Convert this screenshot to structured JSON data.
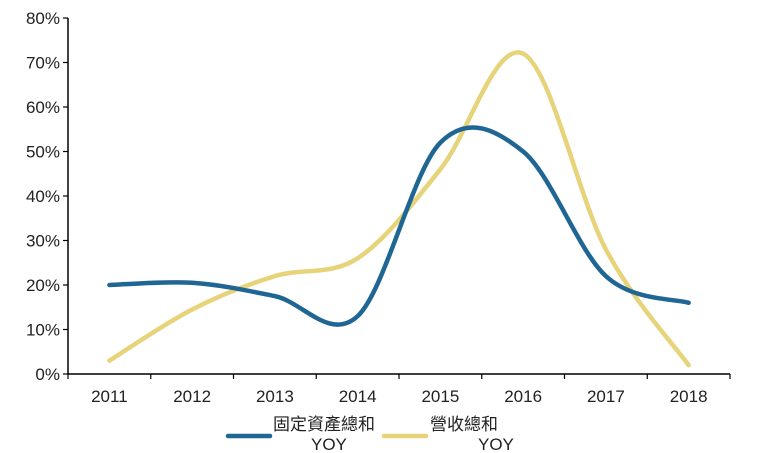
{
  "chart_data": {
    "type": "line",
    "title": "",
    "xlabel": "",
    "ylabel": "",
    "categories": [
      "2011",
      "2012",
      "2013",
      "2014",
      "2015",
      "2016",
      "2017",
      "2018"
    ],
    "ylim": [
      0,
      80
    ],
    "yticks": [
      "0%",
      "10%",
      "20%",
      "30%",
      "40%",
      "50%",
      "60%",
      "70%",
      "80%"
    ],
    "grid": false,
    "legend_position": "bottom",
    "series": [
      {
        "name_line1": "固定資產總和",
        "name_line2": "YOY",
        "color": "#1f6694",
        "values": [
          20,
          20.5,
          17.5,
          13,
          52,
          50,
          22,
          16
        ]
      },
      {
        "name_line1": "營收總和",
        "name_line2": "YOY",
        "color": "#e6d37a",
        "values": [
          3,
          14.5,
          22,
          26,
          46,
          72,
          28,
          2
        ]
      }
    ]
  }
}
